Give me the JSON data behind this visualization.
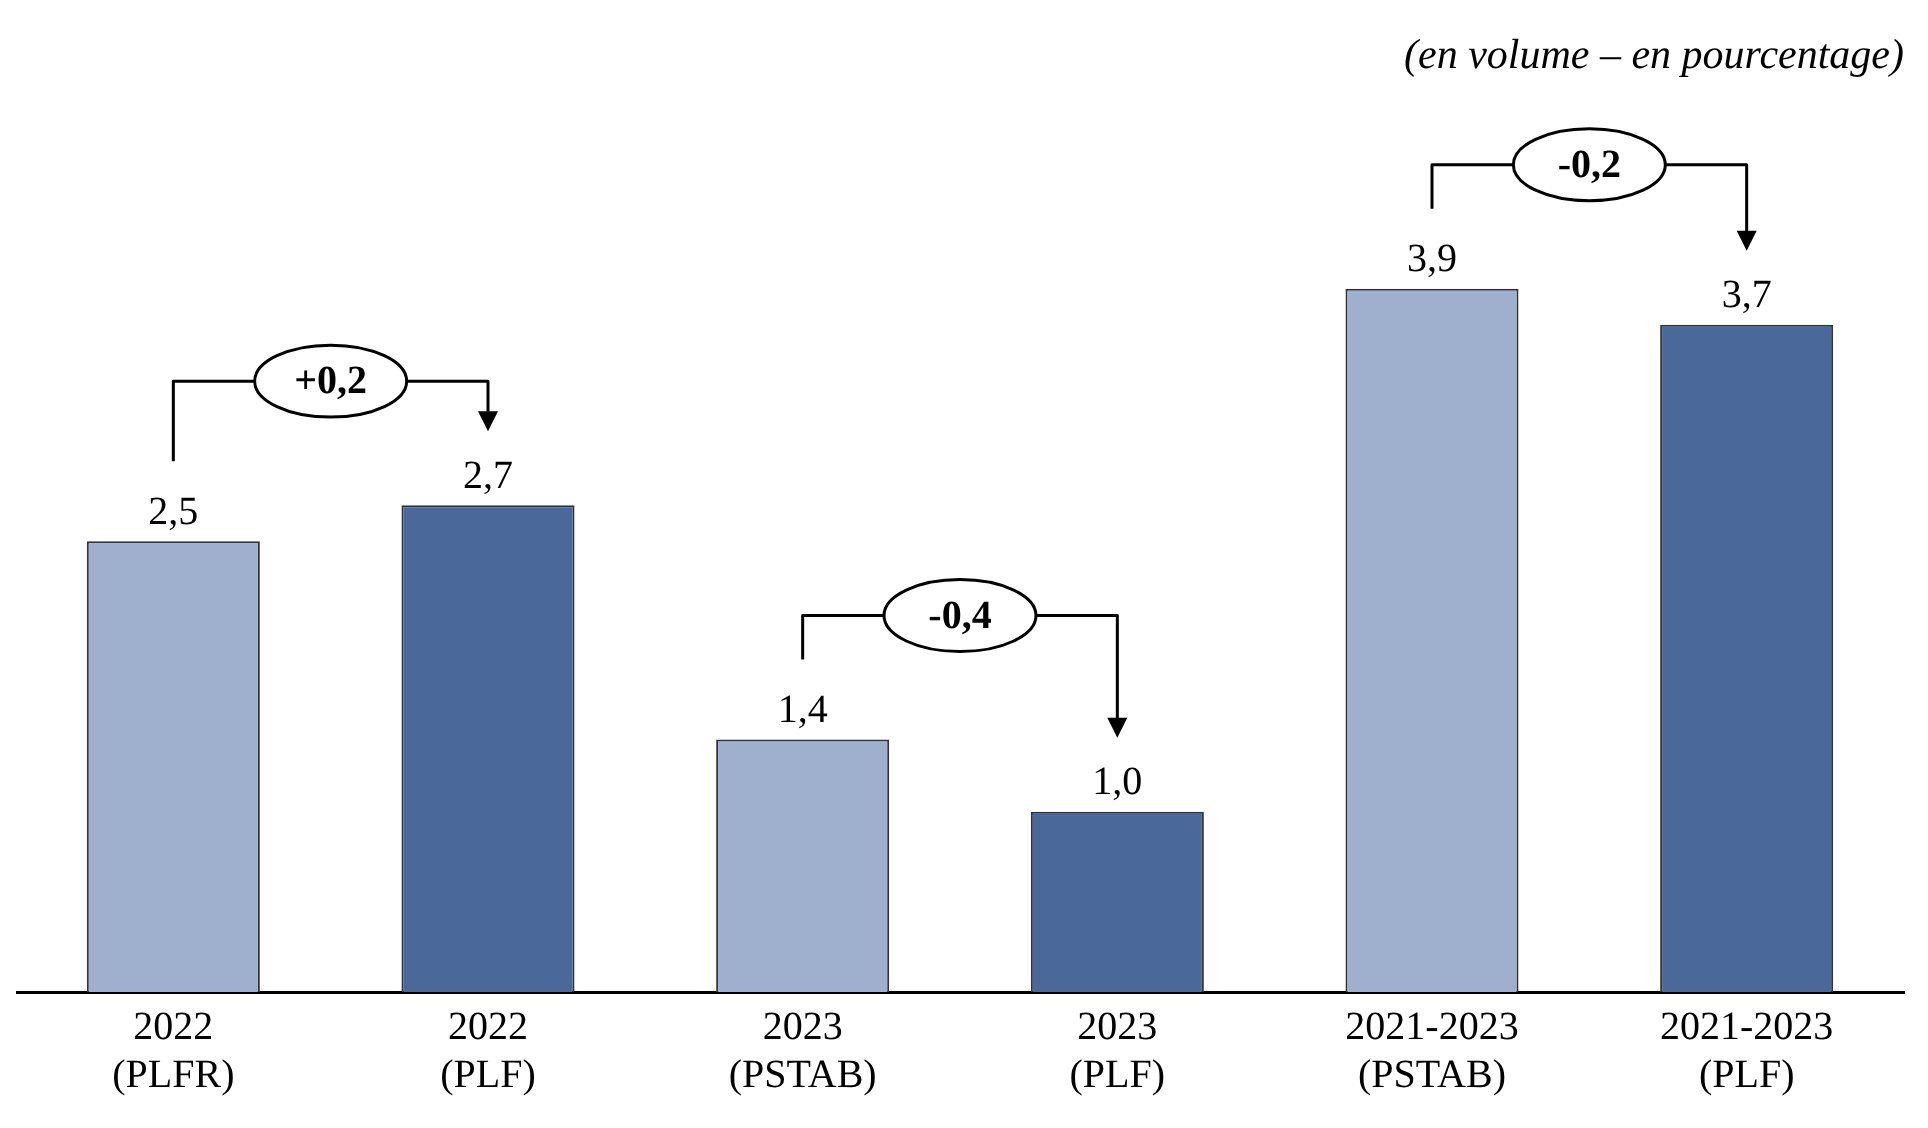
{
  "chart_data": {
    "type": "bar",
    "subtitle": "(en volume – en pourcentage)",
    "categories": [
      "2022 (PLFR)",
      "2022 (PLF)",
      "2023 (PSTAB)",
      "2023 (PLF)",
      "2021-2023 (PSTAB)",
      "2021-2023 (PLF)"
    ],
    "values": [
      2.5,
      2.7,
      1.4,
      1.0,
      3.9,
      3.7
    ],
    "colors": [
      "#9eb0cd",
      "#4a6899",
      "#9eb0cd",
      "#4a6899",
      "#9eb0cd",
      "#4a6899"
    ],
    "value_labels": [
      "2,5",
      "2,7",
      "1,4",
      "1,0",
      "3,9",
      "3,7"
    ],
    "annotations": [
      "+0,2",
      "-0,4",
      "-0,2"
    ],
    "grid": false,
    "legend": false,
    "tick_labels": "x"
  }
}
